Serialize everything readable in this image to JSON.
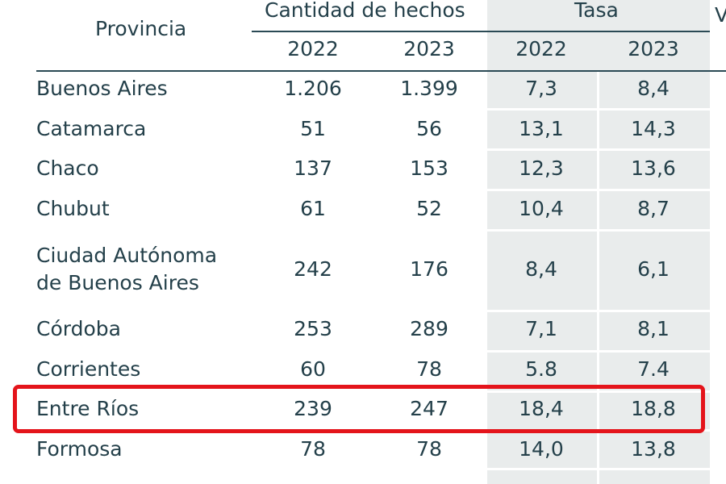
{
  "table": {
    "headers": {
      "provincia": "Provincia",
      "cantidad": "Cantidad de hechos",
      "tasa": "Tasa",
      "cut_header": "V",
      "years": [
        "2022",
        "2023",
        "2022",
        "2023"
      ]
    },
    "rows": [
      {
        "provincia": "Buenos Aires",
        "cant_2022": "1.206",
        "cant_2023": "1.399",
        "tasa_2022": "7,3",
        "tasa_2023": "8,4"
      },
      {
        "provincia": "Catamarca",
        "cant_2022": "51",
        "cant_2023": "56",
        "tasa_2022": "13,1",
        "tasa_2023": "14,3"
      },
      {
        "provincia": "Chaco",
        "cant_2022": "137",
        "cant_2023": "153",
        "tasa_2022": "12,3",
        "tasa_2023": "13,6"
      },
      {
        "provincia": "Chubut",
        "cant_2022": "61",
        "cant_2023": "52",
        "tasa_2022": "10,4",
        "tasa_2023": "8,7"
      },
      {
        "provincia_line1": "Ciudad Autónoma",
        "provincia_line2": "de Buenos Aires",
        "cant_2022": "242",
        "cant_2023": "176",
        "tasa_2022": "8,4",
        "tasa_2023": "6,1"
      },
      {
        "provincia": "Córdoba",
        "cant_2022": "253",
        "cant_2023": "289",
        "tasa_2022": "7,1",
        "tasa_2023": "8,1"
      },
      {
        "provincia": "Corrientes",
        "cant_2022": "60",
        "cant_2023": "78",
        "tasa_2022": "5.8",
        "tasa_2023": "7.4"
      },
      {
        "provincia": "Entre Ríos",
        "cant_2022": "239",
        "cant_2023": "247",
        "tasa_2022": "18,4",
        "tasa_2023": "18,8",
        "highlighted": true
      },
      {
        "provincia": "Formosa",
        "cant_2022": "78",
        "cant_2023": "78",
        "tasa_2022": "14,0",
        "tasa_2023": "13,8"
      }
    ]
  },
  "colors": {
    "text": "#24404a",
    "tasa_shade": "#e9ecec",
    "highlight": "#e4141b"
  }
}
